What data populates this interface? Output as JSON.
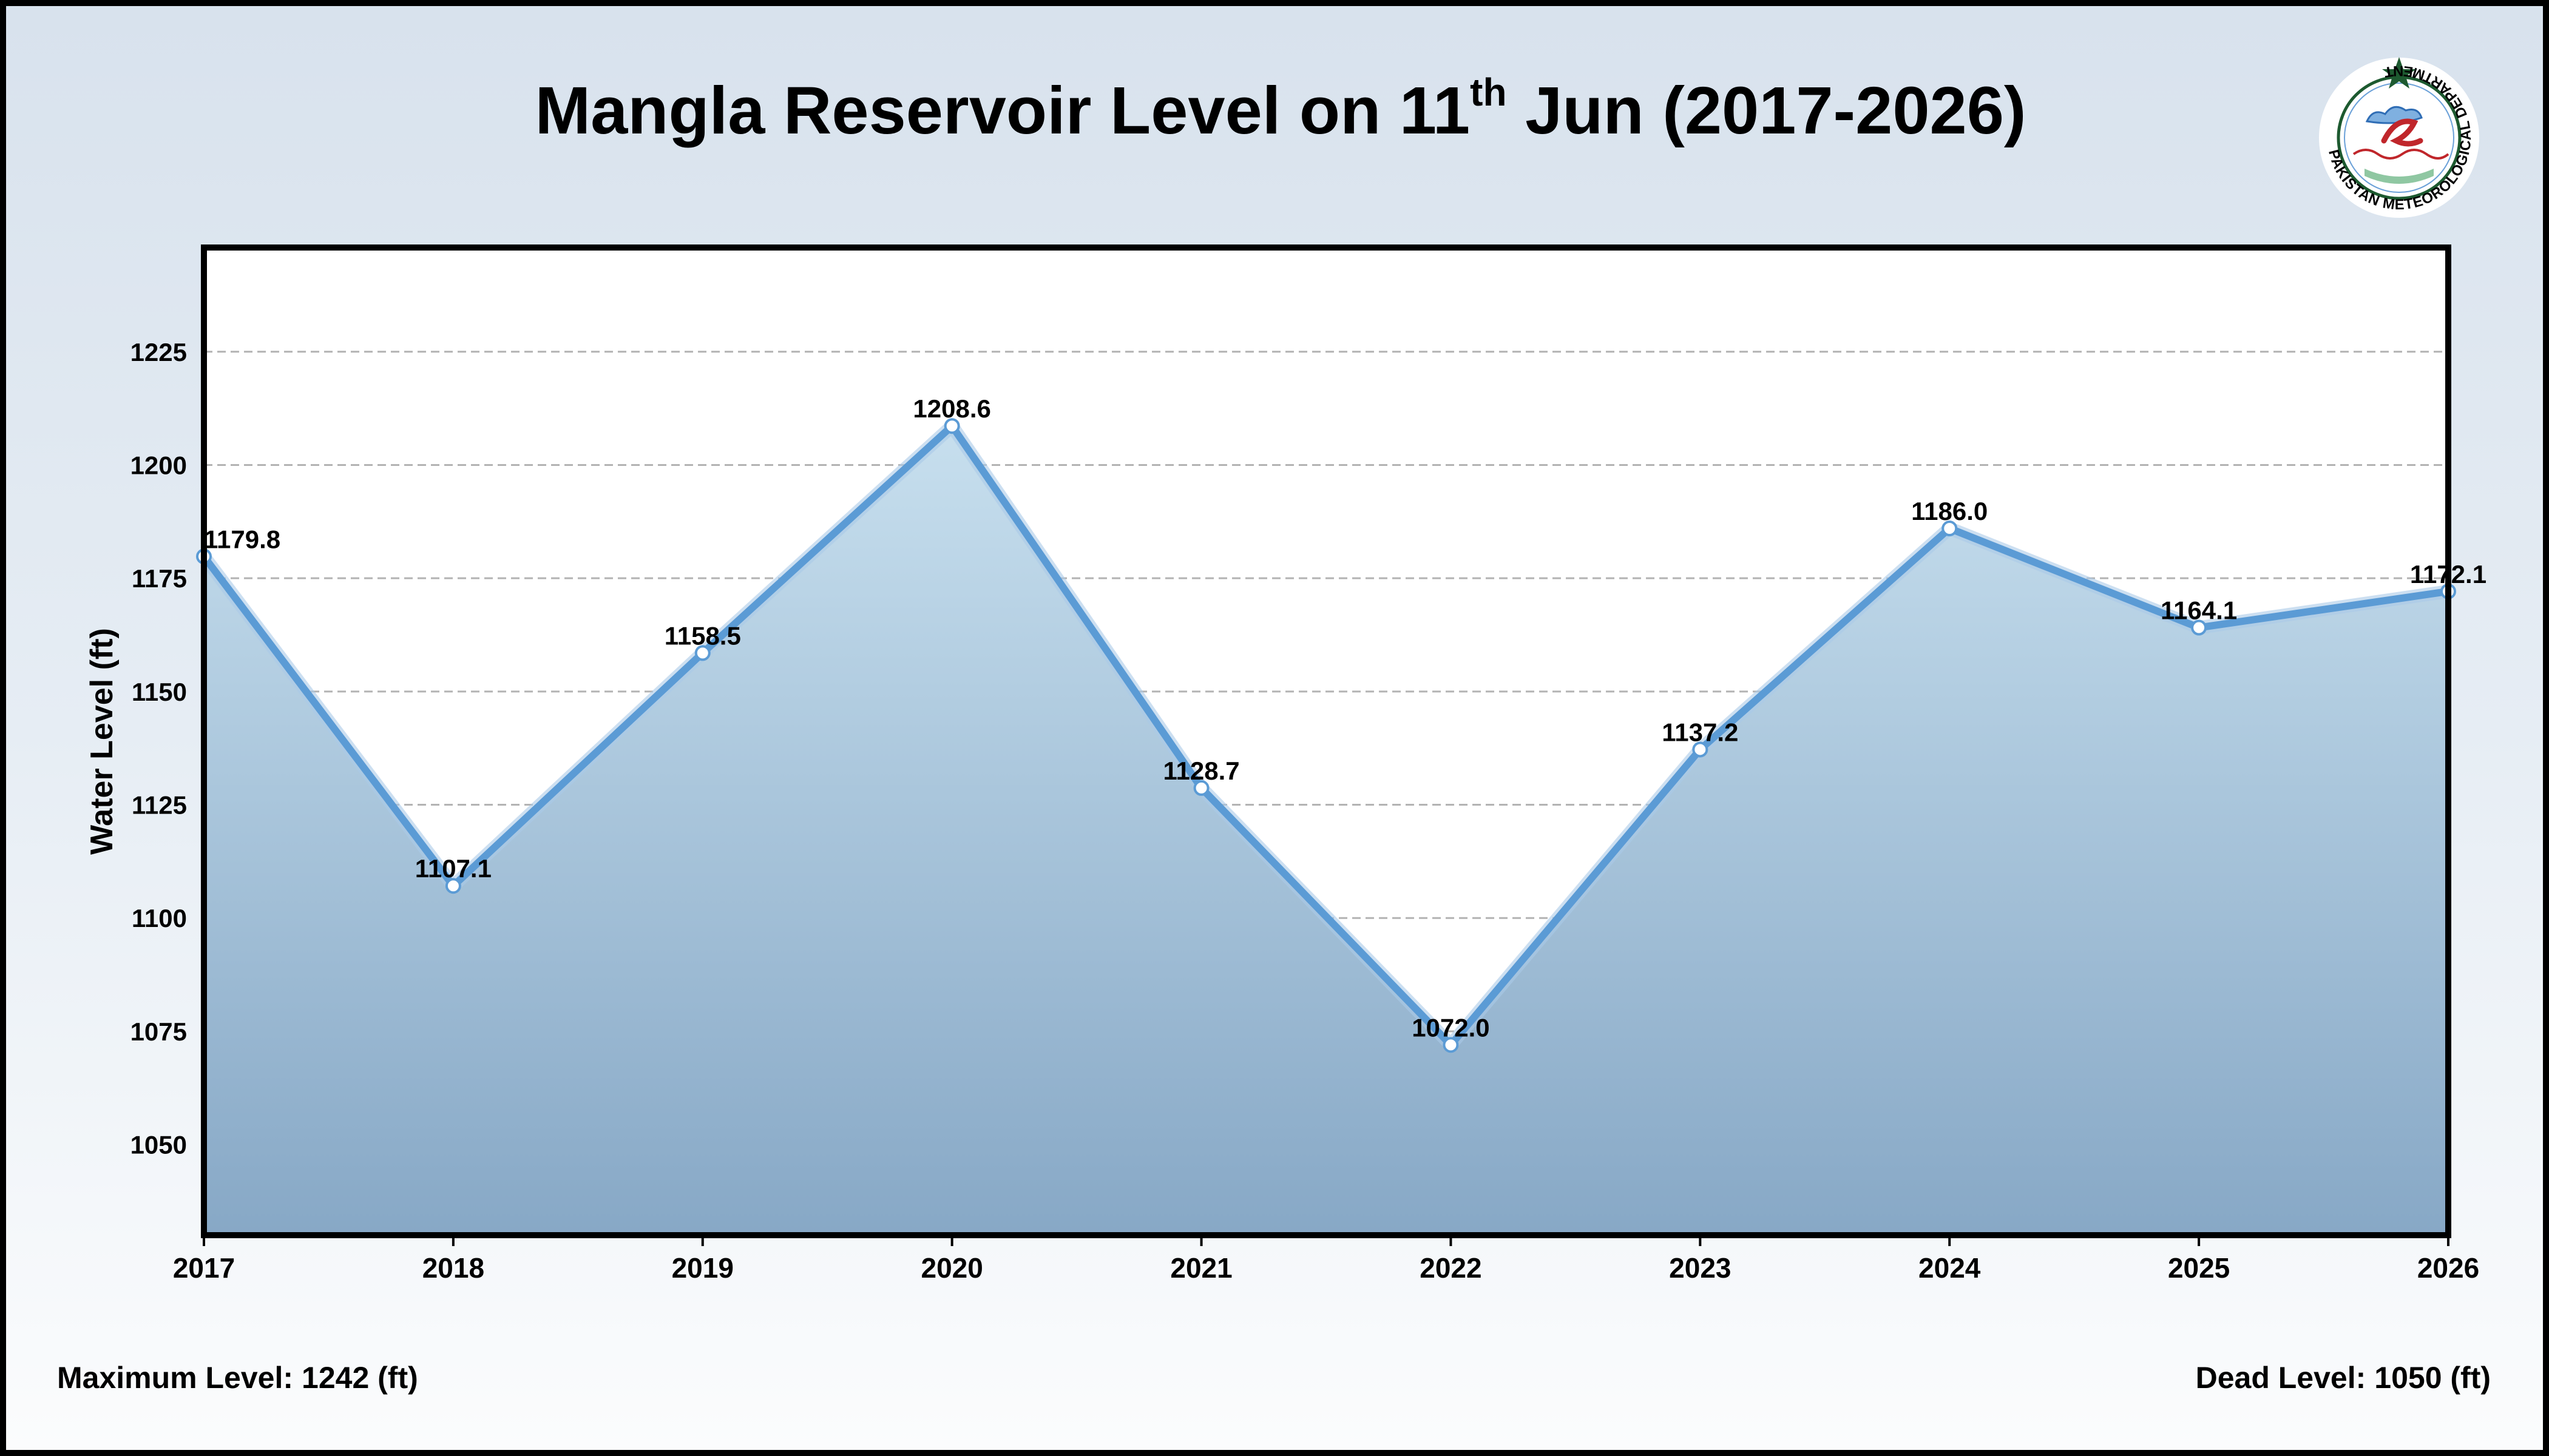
{
  "title": {
    "before": "Mangla Reservoir Level on 11",
    "sup": "th",
    "after": "Jun (2017-2026)"
  },
  "logo": {
    "name": "pakistan-meteorological-department-logo",
    "ring_text": "PAKISTAN METEOROLOGICAL DEPARTMENT",
    "colors": {
      "ring": "#1d5a30",
      "emblem_red": "#c0262b",
      "emblem_blue": "#2f6db5"
    }
  },
  "chart_data": {
    "type": "area",
    "title": "Mangla Reservoir Level on 11th Jun (2017-2026)",
    "xlabel": "",
    "ylabel": "Water Level (ft)",
    "x": [
      2017,
      2018,
      2019,
      2020,
      2021,
      2022,
      2023,
      2024,
      2025,
      2026
    ],
    "values": [
      1179.8,
      1107.1,
      1158.5,
      1208.6,
      1128.7,
      1072.0,
      1137.2,
      1186.0,
      1164.1,
      1172.1
    ],
    "data_labels": [
      "1179.8",
      "1107.1",
      "1158.5",
      "1208.6",
      "1128.7",
      "1072.0",
      "1137.2",
      "1186.0",
      "1164.1",
      "1172.1"
    ],
    "ylim": [
      1030,
      1248
    ],
    "yticks": [
      1050,
      1075,
      1100,
      1125,
      1150,
      1175,
      1200,
      1225
    ],
    "grid": true,
    "colors": {
      "line": "#5b9bd5",
      "fill_top": "#c7dfee",
      "fill_bottom": "#87a8c6",
      "grid": "#b3b3b3"
    }
  },
  "footer": {
    "max_label": "Maximum Level:",
    "max_value": "1242 (ft)",
    "dead_label": "Dead Level:",
    "dead_value": "1050 (ft)"
  }
}
